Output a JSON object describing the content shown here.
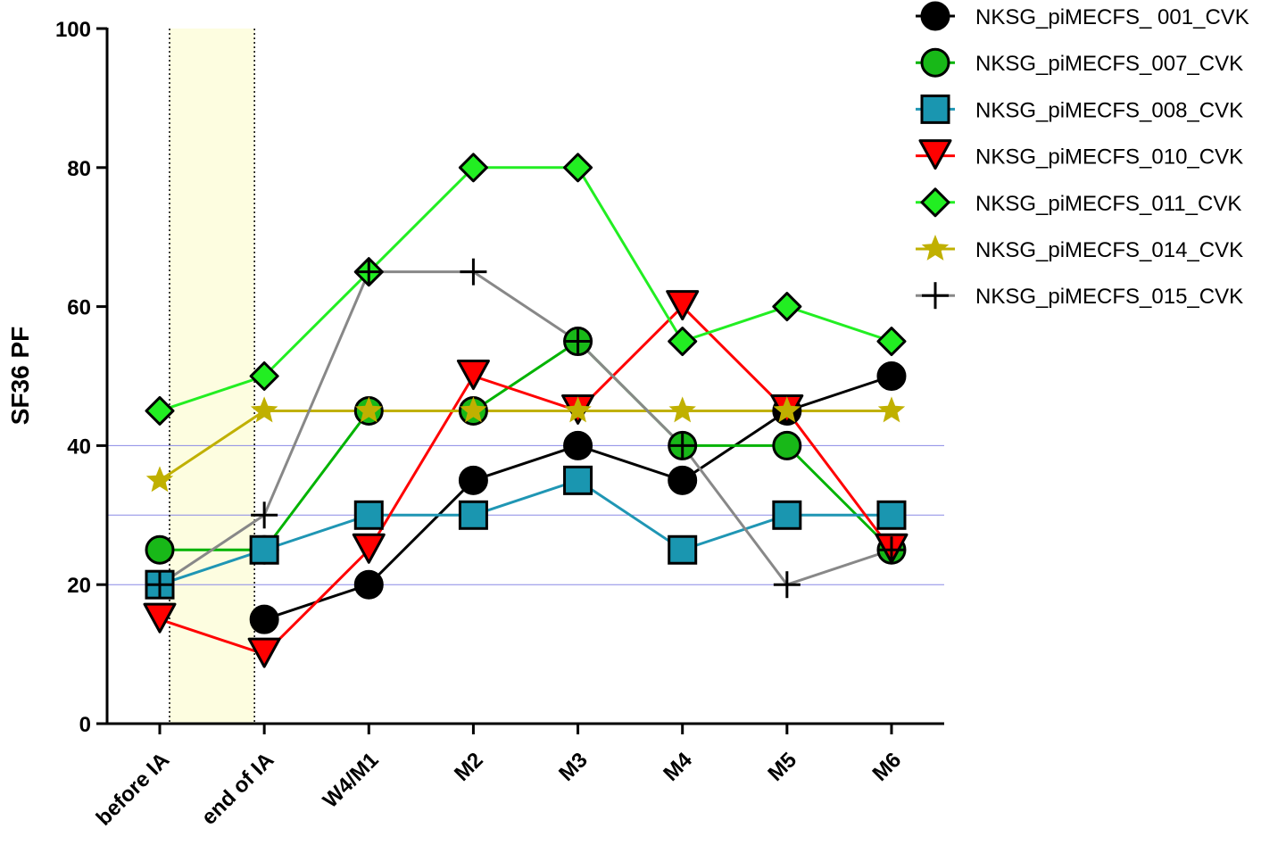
{
  "chart_data": {
    "type": "line",
    "ylabel": "SF36 PF",
    "ylim": [
      0,
      100
    ],
    "yticks": [
      "0",
      "20",
      "40",
      "60",
      "80",
      "100"
    ],
    "categories": [
      "before IA",
      "end of IA",
      "W4/M1",
      "M2",
      "M3",
      "M4",
      "M5",
      "M6"
    ],
    "reference_lines": [
      20,
      30,
      40
    ],
    "shaded_region": {
      "from": "before IA",
      "to": "end of IA",
      "color": "#fdfde0"
    },
    "legend_position": "top-right",
    "series": [
      {
        "name": "NKSG_piMECFS_ 001_CVK",
        "marker": "circle",
        "line_color": "#000000",
        "fill": "#000000",
        "values": [
          null,
          15,
          20,
          35,
          40,
          35,
          45,
          50
        ]
      },
      {
        "name": "NKSG_piMECFS_007_CVK",
        "marker": "circle",
        "line_color": "#00b300",
        "fill": "#18b818",
        "values": [
          25,
          25,
          45,
          45,
          55,
          40,
          40,
          25
        ]
      },
      {
        "name": "NKSG_piMECFS_008_CVK",
        "marker": "square",
        "line_color": "#1f96b4",
        "fill": "#1a96b0",
        "values": [
          20,
          25,
          30,
          30,
          35,
          25,
          30,
          30
        ]
      },
      {
        "name": "NKSG_piMECFS_010_CVK",
        "marker": "triangle-down",
        "line_color": "#ff0000",
        "fill": "#ff0000",
        "values": [
          15,
          10,
          25,
          50,
          45,
          60,
          45,
          25
        ]
      },
      {
        "name": "NKSG_piMECFS_011_CVK",
        "marker": "diamond",
        "line_color": "#22ee22",
        "fill": "#22ee22",
        "values": [
          45,
          50,
          65,
          80,
          80,
          55,
          60,
          55
        ]
      },
      {
        "name": "NKSG_piMECFS_014_CVK",
        "marker": "star",
        "line_color": "#c0b000",
        "fill": "#c0b000",
        "values": [
          35,
          45,
          45,
          45,
          45,
          45,
          45,
          45
        ]
      },
      {
        "name": "NKSG_piMECFS_015_CVK",
        "marker": "plus",
        "line_color": "#888888",
        "fill": "#000000",
        "values": [
          20,
          30,
          65,
          65,
          55,
          40,
          20,
          25
        ]
      }
    ]
  }
}
